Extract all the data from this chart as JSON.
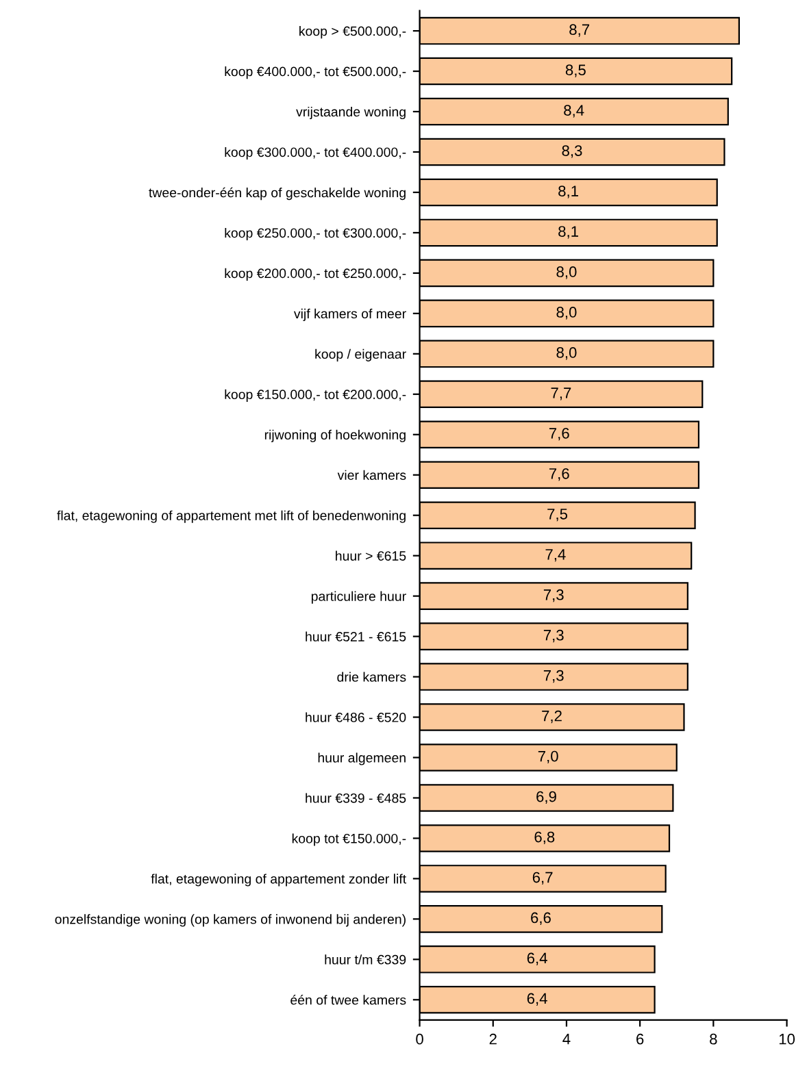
{
  "chart_data": {
    "type": "bar",
    "orientation": "horizontal",
    "categories": [
      "koop > €500.000,-",
      "koop €400.000,- tot €500.000,-",
      "vrijstaande woning",
      "koop €300.000,- tot €400.000,-",
      "twee-onder-één kap of geschakelde woning",
      "koop €250.000,- tot €300.000,-",
      "koop €200.000,- tot €250.000,-",
      "vijf kamers of meer",
      "koop / eigenaar",
      "koop €150.000,- tot €200.000,-",
      "rijwoning of hoekwoning",
      "vier kamers",
      "flat, etagewoning of appartement met lift of benedenwoning",
      "huur > €615",
      "particuliere huur",
      "huur €521 - €615",
      "drie kamers",
      "huur €486 - €520",
      "huur algemeen",
      "huur €339 - €485",
      "koop tot €150.000,-",
      "flat, etagewoning of appartement zonder lift",
      "onzelfstandige woning (op kamers of inwonend bij anderen)",
      "huur t/m €339",
      "één of twee kamers"
    ],
    "values": [
      8.7,
      8.5,
      8.4,
      8.3,
      8.1,
      8.1,
      8.0,
      8.0,
      8.0,
      7.7,
      7.6,
      7.6,
      7.5,
      7.4,
      7.3,
      7.3,
      7.3,
      7.2,
      7.0,
      6.9,
      6.8,
      6.7,
      6.6,
      6.4,
      6.4
    ],
    "value_labels": [
      "8,7",
      "8,5",
      "8,4",
      "8,3",
      "8,1",
      "8,1",
      "8,0",
      "8,0",
      "8,0",
      "7,7",
      "7,6",
      "7,6",
      "7,5",
      "7,4",
      "7,3",
      "7,3",
      "7,3",
      "7,2",
      "7,0",
      "6,9",
      "6,8",
      "6,7",
      "6,6",
      "6,4",
      "6,4"
    ],
    "color": "#fcc99b",
    "xlim": [
      0,
      10
    ],
    "xticks": [
      0,
      2,
      4,
      6,
      8,
      10
    ],
    "grid": false,
    "legend": false
  }
}
